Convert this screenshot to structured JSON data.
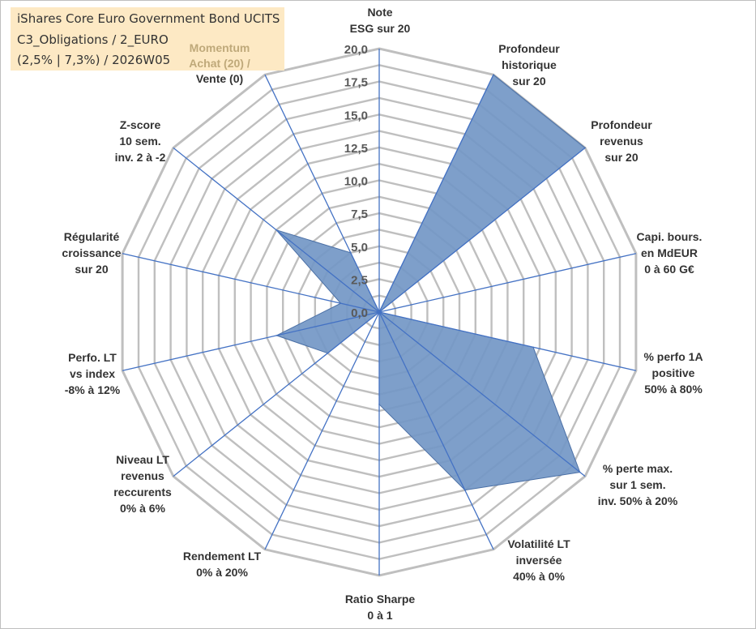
{
  "header": {
    "fund_name": "iShares Core Euro Government Bond UCITS",
    "category": "C3_Obligations / 2_EURO",
    "details": "(2,5% | 7,3%) / 2026W05"
  },
  "colors": {
    "fill": "#7397c6",
    "stroke": "#4a6fa5",
    "grid": "#bfbfbf",
    "spoke": "#4472c4",
    "info_bg": "#fde9c4"
  },
  "chart_data": {
    "type": "radar",
    "r_min": 0,
    "r_max": 20,
    "tick_labels": [
      "0,0",
      "2,5",
      "5,0",
      "7,5",
      "10,0",
      "12,5",
      "15,0",
      "17,5",
      "20,0"
    ],
    "grid_levels": 16,
    "axes": [
      {
        "label": [
          "Note",
          "ESG sur 20"
        ],
        "value": 0
      },
      {
        "label": [
          "Profondeur",
          "historique",
          "sur 20"
        ],
        "value": 20
      },
      {
        "label": [
          "Profondeur",
          "revenus",
          "sur 20"
        ],
        "value": 20
      },
      {
        "label": [
          "Capi. bours.",
          "en MdEUR",
          "0 à 60 G€"
        ],
        "value": 0
      },
      {
        "label": [
          "% perfo 1A",
          "positive",
          "50% à 80%"
        ],
        "value": 12
      },
      {
        "label": [
          "% perte max.",
          "sur 1 sem.",
          "inv. 50% à 20%"
        ],
        "value": 19.5
      },
      {
        "label": [
          "Volatilité LT",
          "inversée",
          "40% à 0%"
        ],
        "value": 15
      },
      {
        "label": [
          "Ratio Sharpe",
          "0 à 1"
        ],
        "value": 7
      },
      {
        "label": [
          "Rendement LT",
          "0% à 20%"
        ],
        "value": 0
      },
      {
        "label": [
          "Niveau LT",
          "revenus",
          "reccurents",
          "0% à 6%"
        ],
        "value": 5
      },
      {
        "label": [
          "Perfo. LT",
          "vs index",
          "-8% à 12%"
        ],
        "value": 8
      },
      {
        "label": [
          "Régularité",
          "croissance",
          "sur 20"
        ],
        "value": 3
      },
      {
        "label": [
          "Z-score",
          "10 sem.",
          "inv. 2 à -2"
        ],
        "value": 10
      },
      {
        "label": [
          "Momentum",
          "Achat (20) /",
          "Vente (0)"
        ],
        "value": 5
      }
    ]
  }
}
